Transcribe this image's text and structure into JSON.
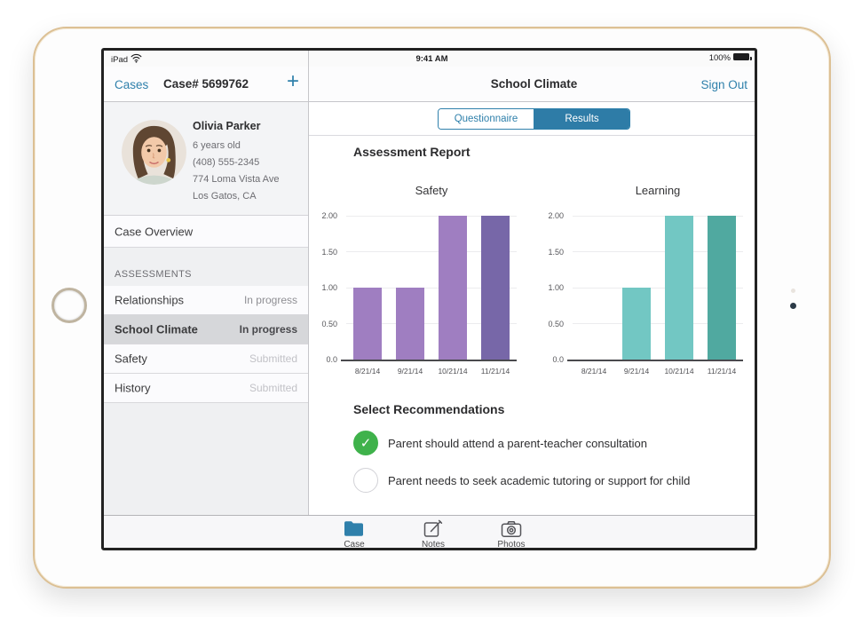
{
  "status_bar": {
    "device": "iPad",
    "time": "9:41 AM",
    "battery": "100%"
  },
  "nav": {
    "back": "Cases",
    "title": "Case# 5699762",
    "add": "+",
    "detail_title": "School Climate",
    "sign_out": "Sign Out"
  },
  "profile": {
    "name": "Olivia Parker",
    "details": [
      "6 years old",
      "(408) 555-2345",
      "774 Loma Vista Ave",
      "Los Gatos, CA"
    ]
  },
  "sidebar": {
    "overview": "Case Overview",
    "section": "ASSESSMENTS",
    "items": [
      {
        "label": "Relationships",
        "status": "In progress",
        "selected": false
      },
      {
        "label": "School Climate",
        "status": "In progress",
        "selected": true
      },
      {
        "label": "Safety",
        "status": "Submitted",
        "selected": false
      },
      {
        "label": "History",
        "status": "Submitted",
        "selected": false
      }
    ]
  },
  "segmented": {
    "options": [
      {
        "label": "Questionnaire",
        "selected": false
      },
      {
        "label": "Results",
        "selected": true
      }
    ]
  },
  "report": {
    "title": "Assessment Report",
    "recommendations_title": "Select Recommendations",
    "recommendations": [
      {
        "label": "Parent should attend a parent-teacher consultation",
        "checked": true
      },
      {
        "label": "Parent needs to seek academic tutoring or support for child",
        "checked": false
      }
    ]
  },
  "chart_data": [
    {
      "type": "bar",
      "title": "Safety",
      "categories": [
        "8/21/14",
        "9/21/14",
        "10/21/14",
        "11/21/14"
      ],
      "values": [
        1,
        1,
        2,
        2
      ],
      "bar_colors": [
        "#9f7ec1",
        "#9f7ec1",
        "#9f7ec1",
        "#7767a8"
      ],
      "xlabel": "",
      "ylabel": "",
      "ylim": [
        0,
        2
      ],
      "yticks": [
        0,
        0.5,
        1,
        1.5,
        2
      ],
      "ytick_labels": [
        "0.0",
        "0.50",
        "1.00",
        "1.50",
        "2.00"
      ],
      "grid": true,
      "legend": "none"
    },
    {
      "type": "bar",
      "title": "Learning",
      "categories": [
        "8/21/14",
        "9/21/14",
        "10/21/14",
        "11/21/14"
      ],
      "values": [
        0,
        1,
        2,
        2
      ],
      "bar_colors": [
        "#72c7c3",
        "#72c7c3",
        "#72c7c3",
        "#50a9a0"
      ],
      "xlabel": "",
      "ylabel": "",
      "ylim": [
        0,
        2
      ],
      "yticks": [
        0,
        0.5,
        1,
        1.5,
        2
      ],
      "ytick_labels": [
        "0.0",
        "0.50",
        "1.00",
        "1.50",
        "2.00"
      ],
      "grid": true,
      "legend": "none"
    }
  ],
  "tab_bar": {
    "items": [
      {
        "label": "Case",
        "icon": "folder-icon",
        "selected": true
      },
      {
        "label": "Notes",
        "icon": "compose-icon",
        "selected": false
      },
      {
        "label": "Photos",
        "icon": "camera-icon",
        "selected": false
      }
    ]
  },
  "colors": {
    "accent": "#2f80ab",
    "segment_selected_fill": "#2e7ca7",
    "check_green": "#3fb24b",
    "purple_light": "#9f7ec1",
    "purple_dark": "#7767a8",
    "teal_light": "#72c7c3",
    "teal_dark": "#50a9a0",
    "selected_row": "#d6d7da"
  }
}
